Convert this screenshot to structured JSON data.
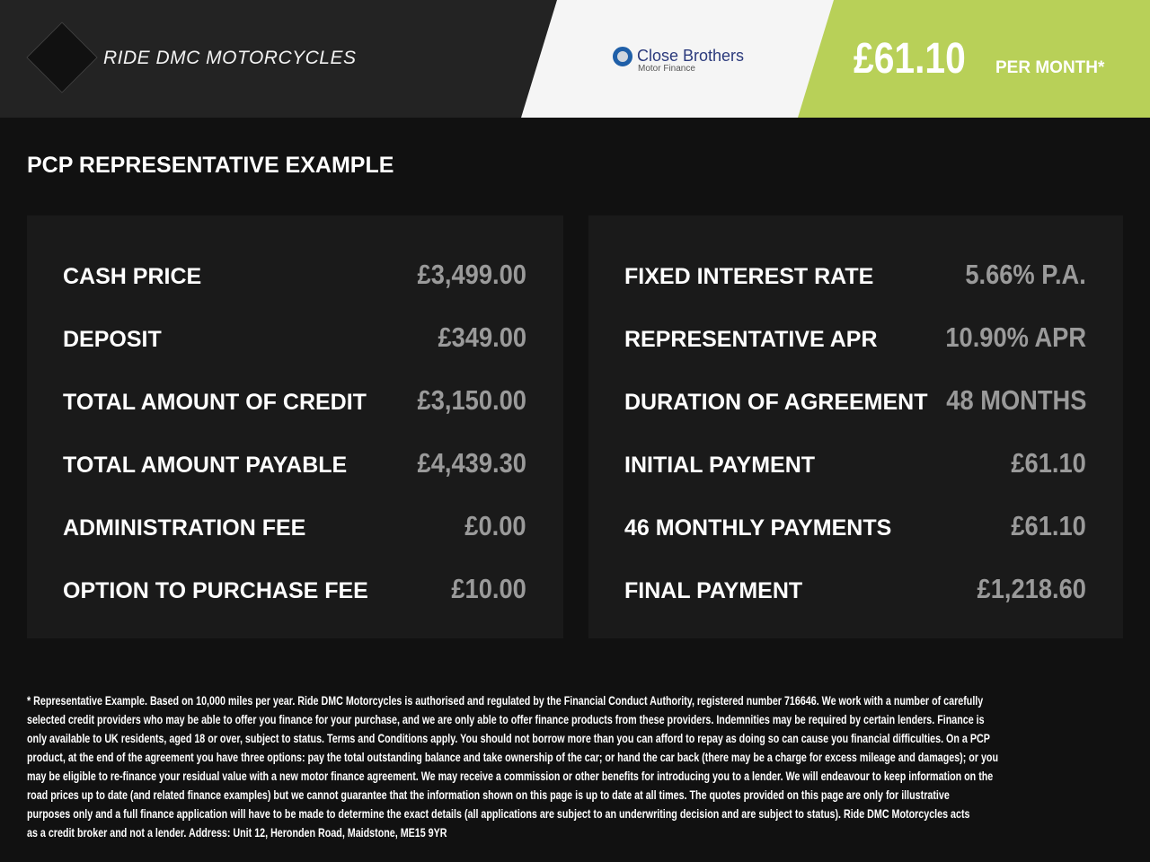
{
  "header": {
    "logo_text": "RIDE DMC MOTORCYCLES",
    "brand_name": "RIDE DMC MOTORCYCLES",
    "finance_partner": {
      "name": "Close Brothers",
      "subtitle": "Motor Finance"
    },
    "monthly_price": "£61.10",
    "per_month_label": "PER MONTH*"
  },
  "colors": {
    "accent_green": "#b8d058",
    "partner_blue": "#2b3a7c"
  },
  "title": "PCP REPRESENTATIVE EXAMPLE",
  "left_panel": [
    {
      "label": "CASH PRICE",
      "value": "£3,499.00"
    },
    {
      "label": "DEPOSIT",
      "value": "£349.00"
    },
    {
      "label": "TOTAL AMOUNT OF CREDIT",
      "value": "£3,150.00"
    },
    {
      "label": "TOTAL AMOUNT PAYABLE",
      "value": "£4,439.30"
    },
    {
      "label": "ADMINISTRATION FEE",
      "value": "£0.00"
    },
    {
      "label": "OPTION TO PURCHASE FEE",
      "value": "£10.00"
    }
  ],
  "right_panel": [
    {
      "label": "FIXED INTEREST RATE",
      "value": "5.66% P.A."
    },
    {
      "label": "REPRESENTATIVE APR",
      "value": "10.90% APR"
    },
    {
      "label": "DURATION OF AGREEMENT",
      "value": "48 MONTHS"
    },
    {
      "label": "INITIAL PAYMENT",
      "value": "£61.10"
    },
    {
      "label": "46 MONTHLY PAYMENTS",
      "value": "£61.10"
    },
    {
      "label": "FINAL PAYMENT",
      "value": "£1,218.60"
    }
  ],
  "footnote_lines": [
    "* Representative Example. Based on 10,000 miles per year. Ride DMC Motorcycles is authorised and regulated by the Financial Conduct Authority, registered number 716646. We work with a number of carefully",
    "selected credit providers who may be able to offer you finance for your purchase, and we are only able to offer finance products from these providers. Indemnities may be required by certain lenders. Finance is",
    "only available to UK residents, aged 18 or over, subject to status. Terms and Conditions apply. You should not borrow more than you can afford to repay as doing so can cause you financial difficulties. On a PCP",
    "product, at the end of the agreement you have three options: pay the total outstanding balance and take ownership of the car; or hand the car back (there may be a charge for excess mileage and damages); or you",
    "may be eligible to re-finance your residual value with a new motor finance agreement. We may receive a commission or other benefits for introducing you to a lender. We will endeavour to keep information on the",
    "road prices up to date (and related finance examples) but we cannot guarantee that the information shown on this page is up to date at all times. The quotes provided on this page are only for illustrative",
    "purposes only and a full finance application will have to be made to determine the exact details (all applications are subject to an underwriting decision and are subject to status). Ride DMC Motorcycles acts",
    "as a credit broker and not a lender. Address: Unit 12, Heronden Road, Maidstone, ME15 9YR"
  ]
}
